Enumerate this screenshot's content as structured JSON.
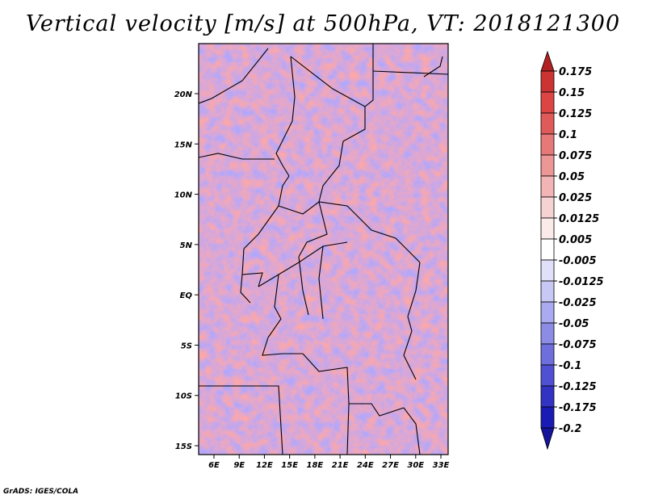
{
  "title": "Vertical velocity [m/s] at 500hPa, VT: 2018121300",
  "credit": "GrADS: IGES/COLA",
  "map": {
    "lat_range": [
      -16,
      25
    ],
    "lon_range": [
      3,
      34
    ],
    "lat_ticks": [
      {
        "value": 20,
        "label": "20N"
      },
      {
        "value": 15,
        "label": "15N"
      },
      {
        "value": 10,
        "label": "10N"
      },
      {
        "value": 5,
        "label": "5N"
      },
      {
        "value": 0,
        "label": "EQ"
      },
      {
        "value": -5,
        "label": "5S"
      },
      {
        "value": -10,
        "label": "10S"
      },
      {
        "value": -15,
        "label": "15S"
      }
    ],
    "lon_ticks": [
      {
        "value": 6,
        "label": "6E"
      },
      {
        "value": 9,
        "label": "9E"
      },
      {
        "value": 12,
        "label": "12E"
      },
      {
        "value": 15,
        "label": "15E"
      },
      {
        "value": 18,
        "label": "18E"
      },
      {
        "value": 21,
        "label": "21E"
      },
      {
        "value": 24,
        "label": "24E"
      },
      {
        "value": 27,
        "label": "27E"
      },
      {
        "value": 30,
        "label": "30E"
      },
      {
        "value": 33,
        "label": "33E"
      }
    ]
  },
  "colorbar": {
    "labels": [
      "0.175",
      "0.15",
      "0.125",
      "0.1",
      "0.075",
      "0.05",
      "0.025",
      "0.0125",
      "0.005",
      "-0.005",
      "-0.0125",
      "-0.025",
      "-0.05",
      "-0.075",
      "-0.1",
      "-0.125",
      "-0.175",
      "-0.2"
    ],
    "colors": [
      "#b22222",
      "#cc3333",
      "#dd4444",
      "#e05a5a",
      "#e67878",
      "#ec9696",
      "#f2b4b4",
      "#f7d2d2",
      "#fbeaea",
      "#ffffff",
      "#e0e0fa",
      "#c8c8f5",
      "#aaaaf0",
      "#8c8ce6",
      "#6e6edc",
      "#5050d2",
      "#3232c3",
      "#1a1ab4",
      "#14149a"
    ]
  }
}
